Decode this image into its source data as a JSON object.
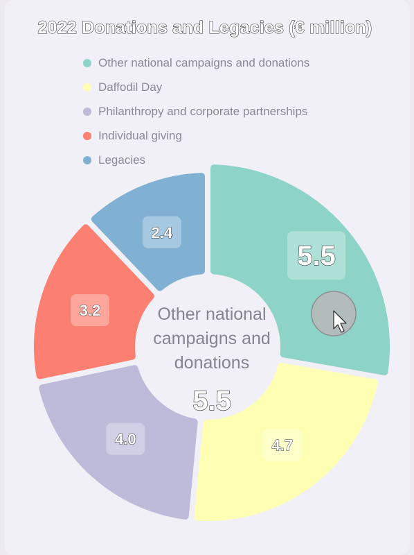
{
  "chart_data": {
    "type": "pie",
    "title": "2022 Donations and Legacies (€ million)",
    "categories": [
      "Other national campaigns and donations",
      "Daffodil Day",
      "Philanthropy and corporate partnerships",
      "Individual giving",
      "Legacies"
    ],
    "values": [
      5.5,
      4.7,
      4.0,
      3.2,
      2.4
    ],
    "value_labels": [
      "5.5",
      "4.7",
      "4.0",
      "3.2",
      "2.4"
    ],
    "colors": [
      "#8dd3c7",
      "#ffffb3",
      "#bebada",
      "#fb8072",
      "#80b1d3"
    ],
    "legend_position": "top",
    "style": "donut",
    "highlighted": {
      "label": "Other national campaigns and donations",
      "value": "5.5"
    }
  }
}
